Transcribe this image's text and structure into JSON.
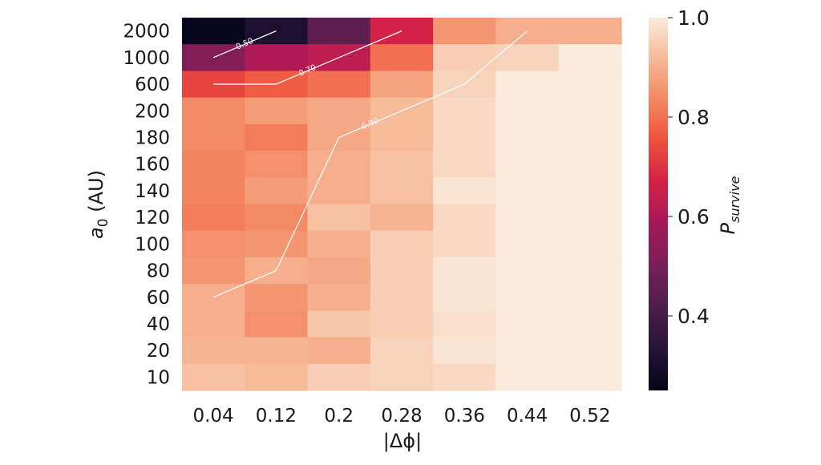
{
  "chart_data": {
    "type": "heatmap",
    "x_categories": [
      "0.04",
      "0.12",
      "0.2",
      "0.28",
      "0.36",
      "0.44",
      "0.52"
    ],
    "y_categories": [
      "2000",
      "1000",
      "600",
      "200",
      "180",
      "160",
      "140",
      "120",
      "100",
      "80",
      "60",
      "40",
      "20",
      "10"
    ],
    "xlabel": "|Δϕ|",
    "ylabel": "a₀ (AU)",
    "colorbar": {
      "label": "P_survive",
      "range": [
        0.25,
        1.0
      ],
      "ticks": [
        "0.4",
        "0.6",
        "0.8",
        "1.0"
      ],
      "tick_values": [
        0.4,
        0.6,
        0.8,
        1.0
      ],
      "colormap": "rocket"
    },
    "values": [
      [
        0.26,
        0.31,
        0.45,
        0.67,
        0.86,
        0.9,
        0.9
      ],
      [
        0.52,
        0.6,
        0.63,
        0.8,
        0.95,
        0.96,
        1.0
      ],
      [
        0.73,
        0.77,
        0.8,
        0.88,
        0.96,
        1.0,
        1.0
      ],
      [
        0.84,
        0.87,
        0.89,
        0.92,
        0.97,
        1.0,
        1.0
      ],
      [
        0.84,
        0.82,
        0.89,
        0.92,
        0.97,
        1.0,
        1.0
      ],
      [
        0.83,
        0.85,
        0.9,
        0.93,
        0.97,
        1.0,
        1.0
      ],
      [
        0.83,
        0.87,
        0.9,
        0.93,
        0.99,
        1.0,
        1.0
      ],
      [
        0.82,
        0.84,
        0.93,
        0.91,
        0.97,
        1.0,
        1.0
      ],
      [
        0.85,
        0.86,
        0.9,
        0.95,
        0.97,
        1.0,
        1.0
      ],
      [
        0.86,
        0.9,
        0.89,
        0.95,
        0.99,
        1.0,
        1.0
      ],
      [
        0.9,
        0.86,
        0.9,
        0.95,
        0.99,
        1.0,
        1.0
      ],
      [
        0.9,
        0.85,
        0.94,
        0.95,
        0.98,
        1.0,
        1.0
      ],
      [
        0.91,
        0.91,
        0.9,
        0.96,
        0.99,
        1.0,
        1.0
      ],
      [
        0.93,
        0.92,
        0.95,
        0.96,
        0.97,
        1.0,
        1.0
      ]
    ],
    "contours": [
      {
        "label": "0.50",
        "points": [
          [
            0.04,
            "1000"
          ],
          [
            0.12,
            "2000"
          ]
        ]
      },
      {
        "label": "0.70",
        "points": [
          [
            0.04,
            "600"
          ],
          [
            0.12,
            "600"
          ],
          [
            0.2,
            "1000"
          ],
          [
            0.28,
            "2000"
          ]
        ]
      },
      {
        "label": "0.90",
        "points": [
          [
            0.04,
            "60"
          ],
          [
            0.12,
            "80"
          ],
          [
            0.2,
            "180"
          ],
          [
            0.28,
            "200"
          ],
          [
            0.36,
            "600"
          ],
          [
            0.44,
            "2000"
          ]
        ]
      }
    ]
  }
}
